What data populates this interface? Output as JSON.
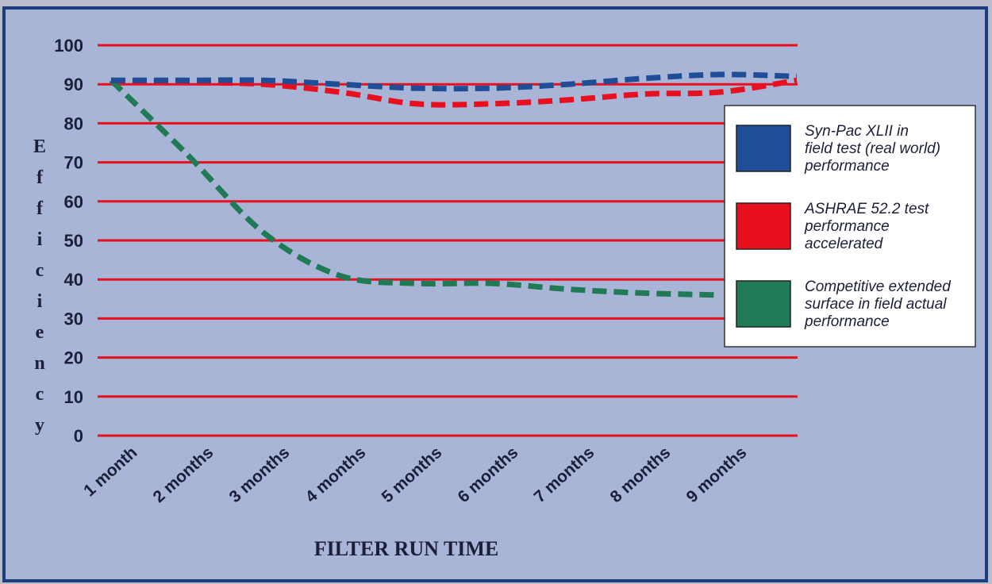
{
  "chart_data": {
    "type": "line",
    "y_label": "Efficiency",
    "x_label": "FILTER RUN TIME",
    "categories": [
      "1 month",
      "2 months",
      "3 months",
      "4 months",
      "5 months",
      "6 months",
      "7 months",
      "8 months",
      "9 months",
      null
    ],
    "series": [
      {
        "name": [
          "Syn-Pac XLII in",
          "field test (real world)",
          "performance"
        ],
        "color": "#1f4e96",
        "values": [
          91,
          91,
          91,
          90,
          89,
          89,
          90,
          91.5,
          92.5,
          92
        ]
      },
      {
        "name": [
          "ASHRAE 52.2 test",
          "performance",
          "accelerated"
        ],
        "color": "#e8101e",
        "values": [
          91,
          90.5,
          90,
          88,
          85,
          85,
          86,
          87.5,
          88,
          91
        ]
      },
      {
        "name": [
          "Competitive extended",
          "surface in field actual",
          "performance"
        ],
        "color": "#1f7a55",
        "values": [
          91,
          72,
          52,
          41,
          39,
          39,
          37.5,
          36.5,
          36,
          null
        ]
      }
    ],
    "ylim": [
      0,
      100
    ],
    "yticks": [
      0,
      10,
      20,
      30,
      40,
      50,
      60,
      70,
      80,
      90,
      100
    ],
    "grid": true,
    "grid_color": "#e8101e",
    "legend": "right"
  }
}
